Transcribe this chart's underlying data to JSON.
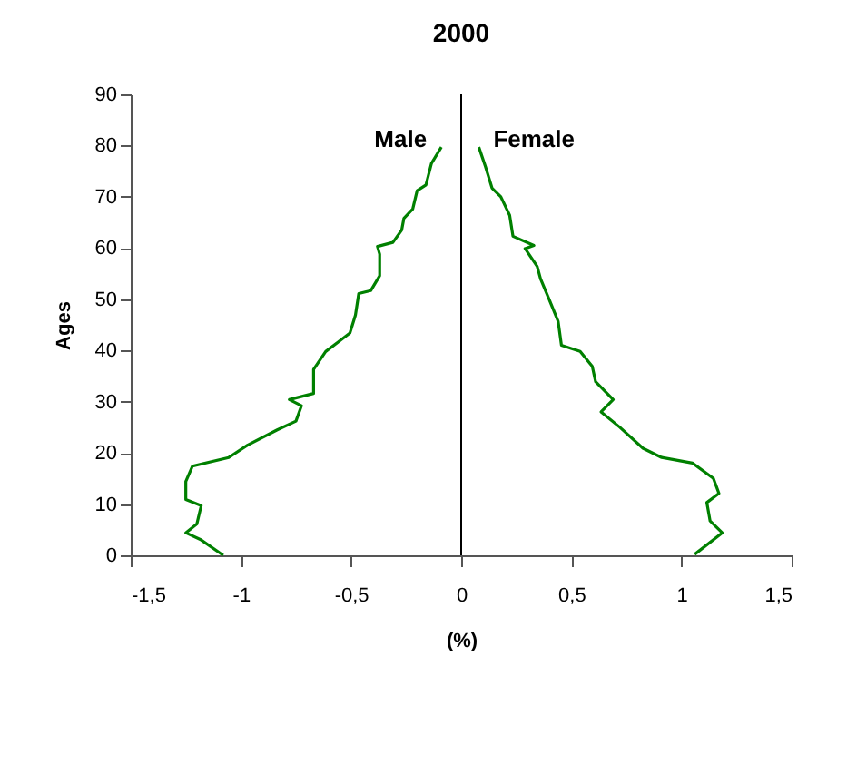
{
  "chart_data": {
    "type": "line",
    "title": "2000",
    "xlabel": "(%)",
    "ylabel": "Ages",
    "xlim": [
      -1.5,
      1.5
    ],
    "ylim": [
      0,
      90
    ],
    "xticks": [
      {
        "value": -1.5,
        "label": "-1,5"
      },
      -1,
      {
        "value": -0.5,
        "label": "-0,5"
      },
      0,
      {
        "value": 0.5,
        "label": "0,5"
      },
      1,
      {
        "value": 1.5,
        "label": "1,5"
      }
    ],
    "yticks": [
      0,
      10,
      20,
      30,
      40,
      50,
      60,
      70,
      80,
      90
    ],
    "grid": false,
    "legend": false,
    "marker": "none",
    "line_style": "solid",
    "ref_lines": [
      {
        "axis": "x",
        "value": 0,
        "color": "#000000"
      }
    ],
    "series": [
      {
        "name": "Male",
        "color": "#008000",
        "x": [
          -1.08,
          -1.18,
          -1.25,
          -1.2,
          -1.18,
          -1.25,
          -1.25,
          -1.22,
          -1.055,
          -0.97,
          -0.835,
          -0.75,
          -0.725,
          -0.78,
          -0.67,
          -0.67,
          -0.615,
          -0.56,
          -0.505,
          -0.48,
          -0.465,
          -0.41,
          -0.37,
          -0.37,
          -0.38,
          -0.31,
          -0.27,
          -0.26,
          -0.22,
          -0.2,
          -0.16,
          -0.135,
          -0.09
        ],
        "values": [
          0,
          3,
          4.4,
          6.1,
          9.7,
          10.9,
          14.4,
          17.4,
          19.1,
          21.5,
          24.5,
          26.2,
          29.2,
          30.4,
          31.6,
          36.3,
          39.8,
          41.6,
          43.4,
          46.9,
          51.1,
          51.7,
          54.6,
          58.8,
          60.3,
          61.1,
          63.5,
          65.8,
          67.6,
          71.2,
          72.3,
          76.5,
          79.7
        ]
      },
      {
        "name": "Female",
        "color": "#008000",
        "x": [
          1.06,
          1.185,
          1.13,
          1.115,
          1.17,
          1.145,
          1.05,
          0.91,
          0.825,
          0.72,
          0.635,
          0.69,
          0.61,
          0.595,
          0.54,
          0.455,
          0.44,
          0.4,
          0.36,
          0.345,
          0.29,
          0.33,
          0.235,
          0.22,
          0.18,
          0.14,
          0.11,
          0.08
        ],
        "values": [
          0.2,
          4.4,
          6.7,
          10.3,
          12.1,
          15,
          18,
          19.1,
          20.9,
          25,
          28,
          30.4,
          33.9,
          36.9,
          39.8,
          41,
          45.7,
          49.9,
          54,
          56.4,
          59.9,
          60.5,
          62.3,
          66.4,
          70,
          71.7,
          75.9,
          79.7
        ]
      }
    ]
  }
}
